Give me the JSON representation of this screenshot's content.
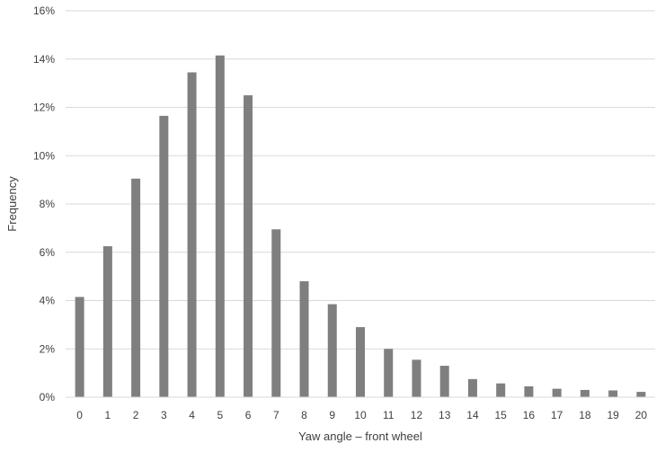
{
  "chart_data": {
    "type": "bar",
    "title": "",
    "xlabel": "Yaw angle – front wheel",
    "ylabel": "Frequency",
    "categories": [
      "0",
      "1",
      "2",
      "3",
      "4",
      "5",
      "6",
      "7",
      "8",
      "9",
      "10",
      "11",
      "12",
      "13",
      "14",
      "15",
      "16",
      "17",
      "18",
      "19",
      "20"
    ],
    "values": [
      4.15,
      6.25,
      9.05,
      11.65,
      13.45,
      14.15,
      12.5,
      6.95,
      4.8,
      3.85,
      2.9,
      2.0,
      1.55,
      1.3,
      0.75,
      0.57,
      0.45,
      0.35,
      0.3,
      0.28,
      0.22
    ],
    "value_unit": "%",
    "ylim": [
      0,
      16
    ],
    "yticks": [
      0,
      2,
      4,
      6,
      8,
      10,
      12,
      14,
      16
    ],
    "ytick_labels": [
      "0%",
      "2%",
      "4%",
      "6%",
      "8%",
      "10%",
      "12%",
      "14%",
      "16%"
    ],
    "grid": true,
    "legend": "none",
    "bar_color": "#7f7f7f"
  }
}
